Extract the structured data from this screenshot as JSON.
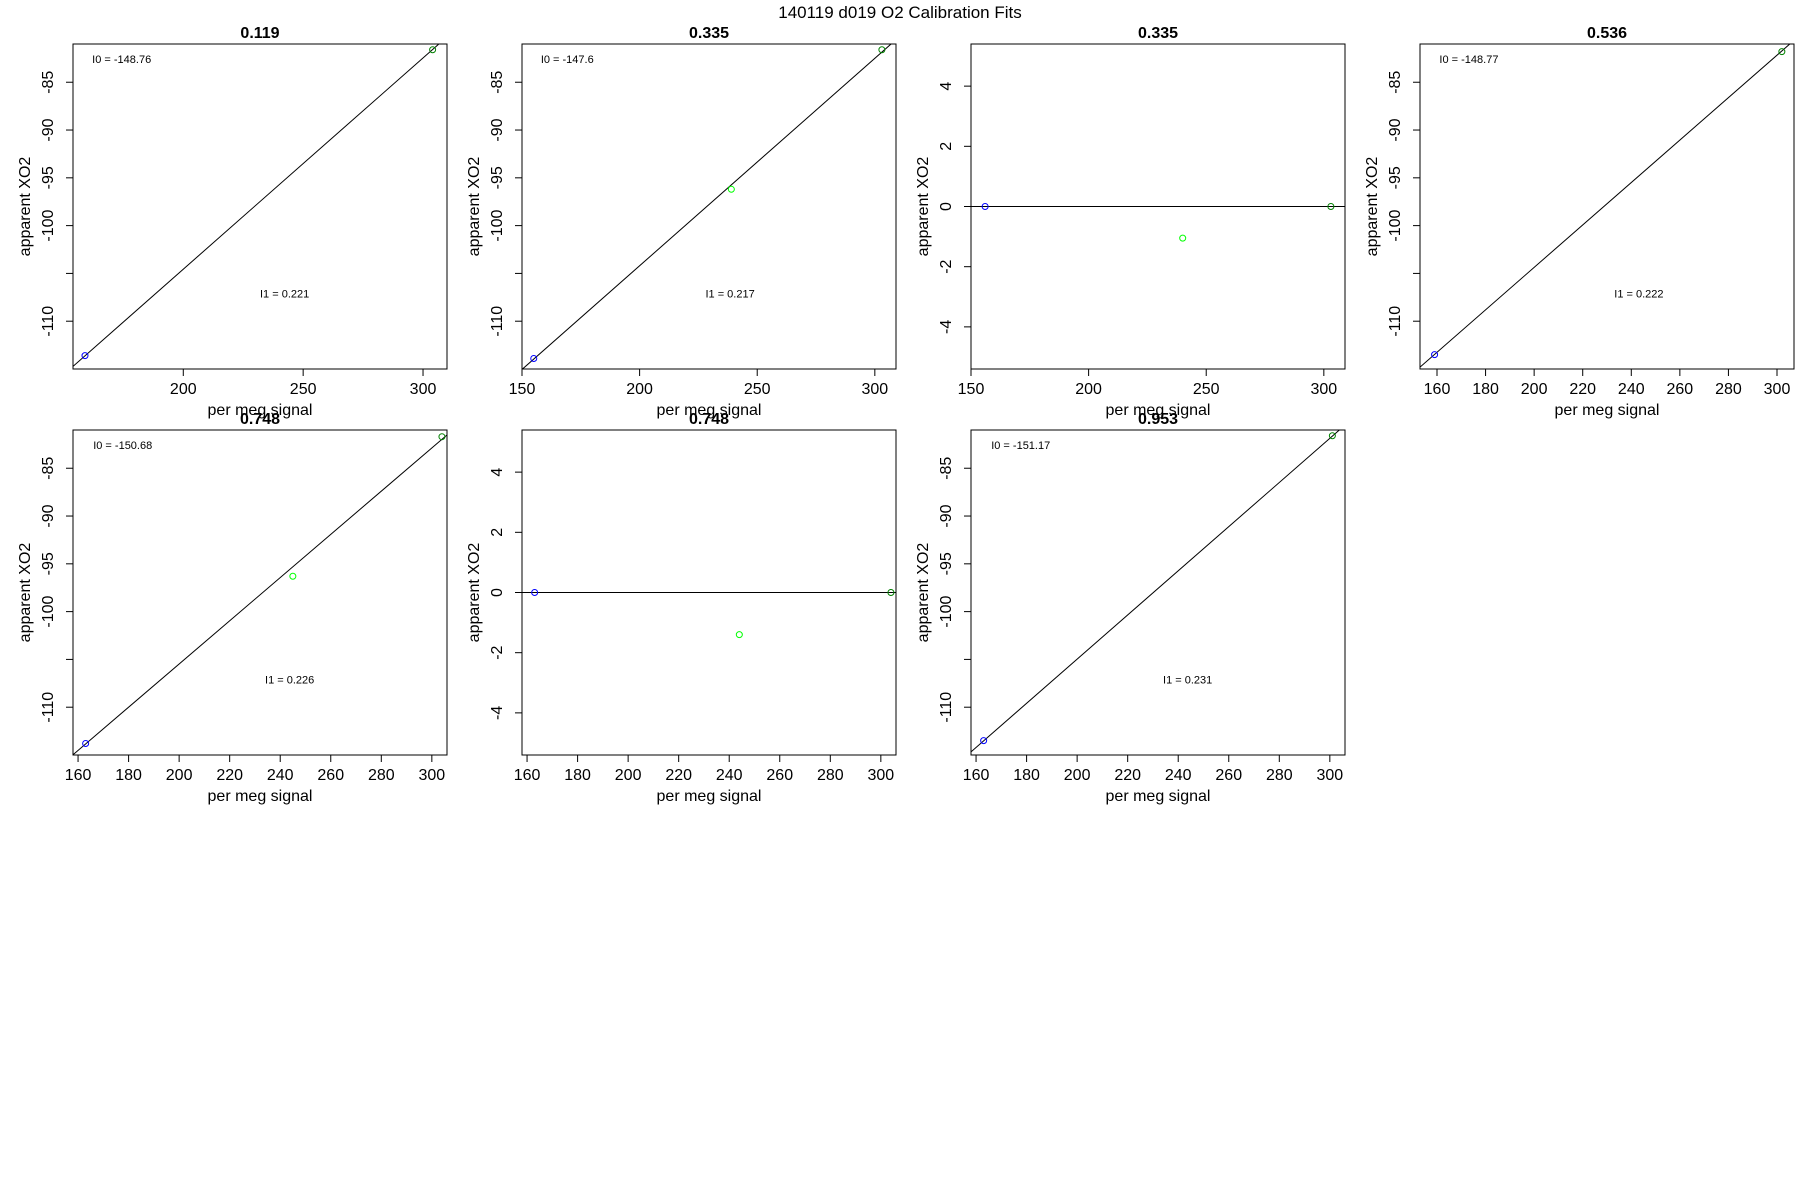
{
  "figure": {
    "title": "140119   d019   O2 Calibration Fits"
  },
  "colors": {
    "low_standard": "#0000ff",
    "high_standard": "#008000",
    "mid_standard": "#00ff00",
    "fit_line": "#000000"
  },
  "chart_data": [
    {
      "type": "scatter",
      "title": "0.119",
      "xlabel": "per meg signal",
      "ylabel": "apparent XO2",
      "xlim": [
        154,
        310
      ],
      "ylim": [
        -115,
        -81
      ],
      "xticks": [
        200,
        250,
        300
      ],
      "yticks": [
        -110,
        -105,
        -100,
        -95,
        -90,
        -85
      ],
      "ytick_labels": [
        "-110",
        "",
        "-100",
        "-95",
        "-90",
        "-85"
      ],
      "annotations": [
        {
          "text": "I0 =  -148.76",
          "x": 162,
          "y": -83
        },
        {
          "text": "I1 =  0.221",
          "x": 232,
          "y": -107.5
        }
      ],
      "fit_line": {
        "intercept": -148.76,
        "slope": 0.221
      },
      "points": [
        {
          "x": 159,
          "y": -113.6,
          "series": "low_standard"
        },
        {
          "x": 304,
          "y": -81.6,
          "series": "high_standard"
        }
      ],
      "grid": false
    },
    {
      "type": "scatter",
      "title": "0.335",
      "xlabel": "per meg signal",
      "ylabel": "apparent XO2",
      "xlim": [
        150,
        309
      ],
      "ylim": [
        -115,
        -81
      ],
      "xticks": [
        150,
        200,
        250,
        300
      ],
      "yticks": [
        -110,
        -105,
        -100,
        -95,
        -90,
        -85
      ],
      "ytick_labels": [
        "-110",
        "",
        "-100",
        "-95",
        "-90",
        "-85"
      ],
      "annotations": [
        {
          "text": "I0 =  -147.6",
          "x": 158,
          "y": -83
        },
        {
          "text": "I1 =  0.217",
          "x": 228,
          "y": -107.5
        }
      ],
      "fit_line": {
        "intercept": -147.6,
        "slope": 0.217
      },
      "points": [
        {
          "x": 155,
          "y": -113.9,
          "series": "low_standard"
        },
        {
          "x": 239,
          "y": -96.2,
          "series": "mid_standard"
        },
        {
          "x": 303,
          "y": -81.6,
          "series": "high_standard"
        }
      ],
      "grid": false
    },
    {
      "type": "scatter",
      "title": "0.335",
      "xlabel": "per meg signal",
      "ylabel": "apparent XO2",
      "xlim": [
        150,
        309
      ],
      "ylim": [
        -5.4,
        5.4
      ],
      "xticks": [
        150,
        200,
        250,
        300
      ],
      "yticks": [
        -4,
        -2,
        0,
        2,
        4
      ],
      "annotations": [],
      "fit_line": {
        "intercept": 0,
        "slope": 0
      },
      "points": [
        {
          "x": 156,
          "y": 0,
          "series": "low_standard"
        },
        {
          "x": 240,
          "y": -1.05,
          "series": "mid_standard"
        },
        {
          "x": 303,
          "y": 0,
          "series": "high_standard"
        }
      ],
      "grid": false
    },
    {
      "type": "scatter",
      "title": "0.536",
      "xlabel": "per meg signal",
      "ylabel": "apparent XO2",
      "xlim": [
        153,
        307
      ],
      "ylim": [
        -115,
        -81
      ],
      "xticks": [
        160,
        180,
        200,
        220,
        240,
        260,
        280,
        300
      ],
      "yticks": [
        -110,
        -105,
        -100,
        -95,
        -90,
        -85
      ],
      "ytick_labels": [
        "-110",
        "",
        "-100",
        "-95",
        "-90",
        "-85"
      ],
      "annotations": [
        {
          "text": "I0 =  -148.77",
          "x": 161,
          "y": -83
        },
        {
          "text": "I1 =  0.222",
          "x": 233,
          "y": -107.5
        }
      ],
      "fit_line": {
        "intercept": -148.77,
        "slope": 0.222
      },
      "points": [
        {
          "x": 159,
          "y": -113.5,
          "series": "low_standard"
        },
        {
          "x": 302,
          "y": -81.8,
          "series": "high_standard"
        }
      ],
      "grid": false
    },
    {
      "type": "scatter",
      "title": "0.748",
      "xlabel": "per meg signal",
      "ylabel": "apparent XO2",
      "xlim": [
        158,
        306
      ],
      "ylim": [
        -115,
        -81
      ],
      "xticks": [
        160,
        180,
        200,
        220,
        240,
        260,
        280,
        300
      ],
      "yticks": [
        -110,
        -105,
        -100,
        -95,
        -90,
        -85
      ],
      "ytick_labels": [
        "-110",
        "",
        "-100",
        "-95",
        "-90",
        "-85"
      ],
      "annotations": [
        {
          "text": "I0 =  -150.68",
          "x": 166,
          "y": -83
        },
        {
          "text": "I1 =  0.226",
          "x": 234,
          "y": -107.5
        }
      ],
      "fit_line": {
        "intercept": -150.68,
        "slope": 0.226
      },
      "points": [
        {
          "x": 163,
          "y": -113.8,
          "series": "low_standard"
        },
        {
          "x": 245,
          "y": -96.3,
          "series": "mid_standard"
        },
        {
          "x": 304,
          "y": -81.7,
          "series": "high_standard"
        }
      ],
      "grid": false
    },
    {
      "type": "scatter",
      "title": "0.748",
      "xlabel": "per meg signal",
      "ylabel": "apparent XO2",
      "xlim": [
        158,
        306
      ],
      "ylim": [
        -5.4,
        5.4
      ],
      "xticks": [
        160,
        180,
        200,
        220,
        240,
        260,
        280,
        300
      ],
      "yticks": [
        -4,
        -2,
        0,
        2,
        4
      ],
      "annotations": [],
      "fit_line": {
        "intercept": 0,
        "slope": 0
      },
      "points": [
        {
          "x": 163,
          "y": 0,
          "series": "low_standard"
        },
        {
          "x": 244,
          "y": -1.4,
          "series": "mid_standard"
        },
        {
          "x": 304,
          "y": 0,
          "series": "high_standard"
        }
      ],
      "grid": false
    },
    {
      "type": "scatter",
      "title": "0.953",
      "xlabel": "per meg signal",
      "ylabel": "apparent XO2",
      "xlim": [
        158,
        306
      ],
      "ylim": [
        -115,
        -81
      ],
      "xticks": [
        160,
        180,
        200,
        220,
        240,
        260,
        280,
        300
      ],
      "yticks": [
        -110,
        -105,
        -100,
        -95,
        -90,
        -85
      ],
      "ytick_labels": [
        "-110",
        "",
        "-100",
        "-95",
        "-90",
        "-85"
      ],
      "annotations": [
        {
          "text": "I0 =  -151.17",
          "x": 166,
          "y": -83
        },
        {
          "text": "I1 =  0.231",
          "x": 234,
          "y": -107.5
        }
      ],
      "fit_line": {
        "intercept": -151.17,
        "slope": 0.231
      },
      "points": [
        {
          "x": 163,
          "y": -113.5,
          "series": "low_standard"
        },
        {
          "x": 301,
          "y": -81.6,
          "series": "high_standard"
        }
      ],
      "grid": false
    }
  ]
}
